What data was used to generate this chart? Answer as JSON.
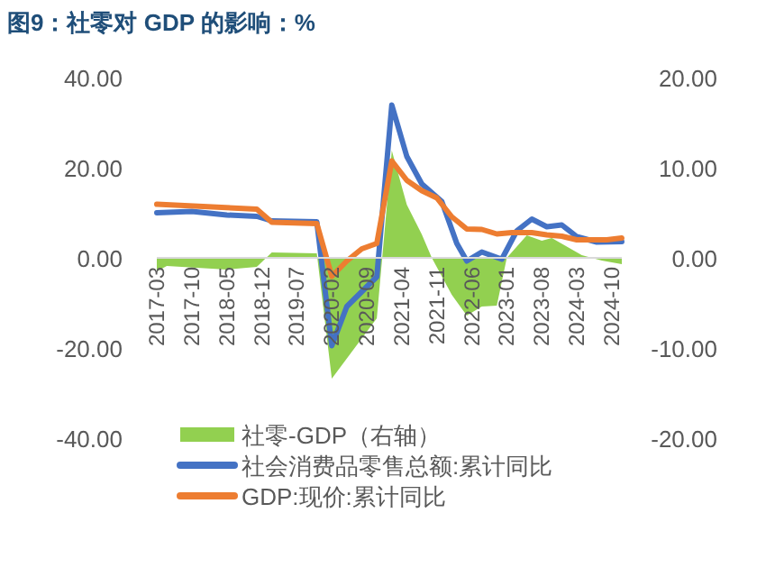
{
  "chart_data": {
    "type": "line",
    "title": "图9：社零对 GDP 的影响：%",
    "xlim": [
      "2017-03",
      "2024-12"
    ],
    "xticks": [
      "2017-03",
      "2017-10",
      "2018-05",
      "2018-12",
      "2019-07",
      "2020-02",
      "2020-09",
      "2021-04",
      "2021-11",
      "2022-06",
      "2023-01",
      "2023-08",
      "2024-03",
      "2024-10"
    ],
    "ylim": [
      -40,
      40
    ],
    "yticks": [
      {
        "value": 40,
        "label": "40.00"
      },
      {
        "value": 20,
        "label": "20.00"
      },
      {
        "value": 0,
        "label": "0.00"
      },
      {
        "value": -20,
        "label": "-20.00"
      },
      {
        "value": -40,
        "label": "-40.00"
      }
    ],
    "y2lim": [
      -20,
      20
    ],
    "y2ticks": [
      {
        "value": 20,
        "label": "20.00"
      },
      {
        "value": 10,
        "label": "10.00"
      },
      {
        "value": 0,
        "label": "0.00"
      },
      {
        "value": -10,
        "label": "-10.00"
      },
      {
        "value": -20,
        "label": "-20.00"
      }
    ],
    "grid": false,
    "legend": "bottom",
    "series": [
      {
        "name": "社零-GDP（右轴）",
        "type": "area",
        "axis": "y2",
        "color": "#92d050",
        "x": [
          "2017-03",
          "2017-05",
          "2018-05",
          "2018-11",
          "2019-02",
          "2019-11",
          "2020-02",
          "2020-11",
          "2021-02",
          "2021-05",
          "2021-08",
          "2021-10",
          "2022-02",
          "2022-05",
          "2022-08",
          "2022-11",
          "2023-01",
          "2023-05",
          "2023-08",
          "2023-10",
          "2024-04",
          "2024-08",
          "2024-12"
        ],
        "values": [
          -1.5,
          -0.9,
          -1.3,
          -1.0,
          0.6,
          0.5,
          -13.4,
          -6.7,
          11.9,
          5.9,
          2.6,
          0,
          -4.1,
          -6.4,
          -5.4,
          -5.3,
          0,
          2.5,
          1.9,
          2.2,
          0.3,
          -0.3,
          -0.7
        ]
      },
      {
        "name": "社会消费品零售总额:累计同比",
        "type": "line",
        "color": "#4472c4",
        "x": [
          "2017-03",
          "2017-10",
          "2018-05",
          "2018-11",
          "2019-02",
          "2019-11",
          "2020-02",
          "2020-05",
          "2020-08",
          "2020-11",
          "2021-02",
          "2021-05",
          "2021-08",
          "2021-12",
          "2022-03",
          "2022-05",
          "2022-08",
          "2022-12",
          "2023-03",
          "2023-06",
          "2023-09",
          "2023-12",
          "2024-03",
          "2024-07",
          "2024-12"
        ],
        "values": [
          10.0,
          10.3,
          9.5,
          9.2,
          8.2,
          8.0,
          -19.5,
          -10.8,
          -7.5,
          -4.2,
          33.9,
          22.5,
          16.4,
          12.5,
          3.2,
          -0.7,
          1.3,
          -0.3,
          6.0,
          8.6,
          6.9,
          7.3,
          4.7,
          3.5,
          3.6
        ]
      },
      {
        "name": "GDP:现价:累计同比",
        "type": "line",
        "color": "#ed7d31",
        "x": [
          "2017-03",
          "2018-11",
          "2019-02",
          "2019-11",
          "2020-02",
          "2020-05",
          "2020-08",
          "2020-11",
          "2021-02",
          "2021-05",
          "2021-08",
          "2021-11",
          "2022-02",
          "2022-05",
          "2022-08",
          "2022-11",
          "2023-02",
          "2023-06",
          "2023-09",
          "2023-12",
          "2024-03",
          "2024-06",
          "2024-09",
          "2024-12"
        ],
        "values": [
          11.9,
          10.8,
          7.9,
          7.6,
          -4.1,
          -0.7,
          2.0,
          3.2,
          21.5,
          17.2,
          14.9,
          13.3,
          9.1,
          6.4,
          6.3,
          5.3,
          5.6,
          5.6,
          5.1,
          4.8,
          4.0,
          4.0,
          4.0,
          4.4
        ]
      }
    ]
  }
}
